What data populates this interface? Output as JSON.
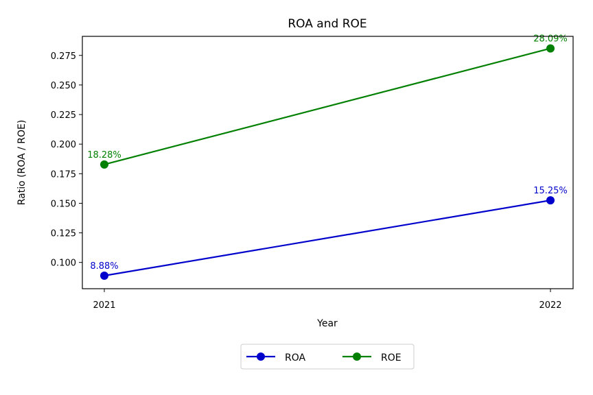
{
  "chart_data": {
    "type": "line",
    "title": "ROA and ROE",
    "xlabel": "Year",
    "ylabel": "Ratio (ROA / ROE)",
    "categories": [
      "2021",
      "2022"
    ],
    "yticks": [
      "0.100",
      "0.125",
      "0.150",
      "0.175",
      "0.200",
      "0.225",
      "0.250",
      "0.275"
    ],
    "ylim": [
      0.0778,
      0.2911
    ],
    "grid": false,
    "legend_position": "bottom-center",
    "series": [
      {
        "name": "ROA",
        "color": "#0000cc",
        "values": [
          0.0888,
          0.1525
        ],
        "labels": [
          "8.88%",
          "15.25%"
        ]
      },
      {
        "name": "ROE",
        "color": "#008000",
        "values": [
          0.1828,
          0.2809
        ],
        "labels": [
          "18.28%",
          "28.09%"
        ]
      }
    ]
  }
}
